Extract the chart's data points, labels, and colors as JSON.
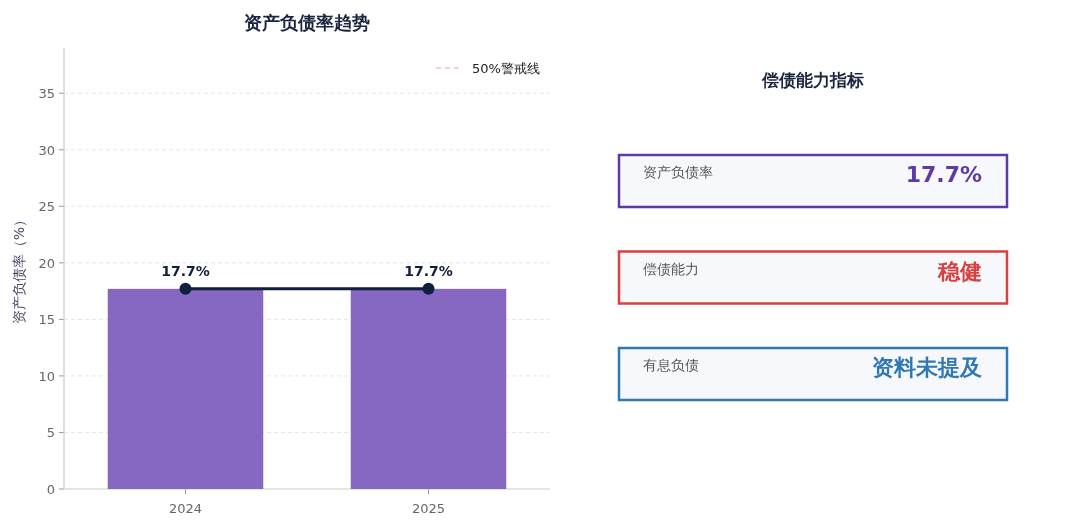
{
  "chart_data": [
    {
      "type": "bar",
      "title": "资产负债率趋势",
      "ylabel": "资产负债率（%）",
      "categories": [
        "2024",
        "2025"
      ],
      "ylim": [
        0,
        39
      ],
      "yticks": [
        0,
        5,
        10,
        15,
        20,
        25,
        30,
        35
      ],
      "grid": "y",
      "legend": "top right",
      "series": [
        {
          "type": "bar",
          "color": "#8667c2",
          "values": [
            17.7,
            17.7
          ]
        },
        {
          "type": "line",
          "color": "#0f1f3d",
          "marker": "circle",
          "values": [
            17.7,
            17.7
          ],
          "value_labels": [
            "17.7%",
            "17.7%"
          ]
        },
        {
          "type": "line",
          "name": "50%警戒线",
          "color": "#e8a0a8",
          "line_style": "dashed",
          "values": [
            null,
            null
          ]
        }
      ]
    },
    {
      "type": "other",
      "title": "偿债能力指标",
      "categories": [
        "资产负债率",
        "偿债能力",
        "有息负债"
      ],
      "value_labels": [
        "17.7%",
        "稳健",
        "资料未提及"
      ],
      "colors": [
        "#5e3aa8",
        "#d94040",
        "#2f78b5"
      ]
    }
  ]
}
